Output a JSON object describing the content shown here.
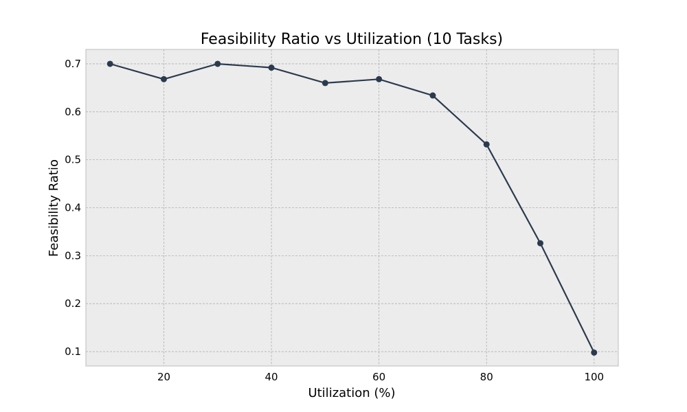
{
  "chart_data": {
    "type": "line",
    "title": "Feasibility Ratio vs Utilization (10 Tasks)",
    "xlabel": "Utilization (%)",
    "ylabel": "Feasibility Ratio",
    "xlim": [
      5.5,
      104.5
    ],
    "ylim": [
      0.07,
      0.73
    ],
    "xticks": [
      20,
      40,
      60,
      80,
      100
    ],
    "yticks": [
      0.1,
      0.2,
      0.3,
      0.4,
      0.5,
      0.6,
      0.7
    ],
    "grid": true,
    "x": [
      10,
      20,
      30,
      40,
      50,
      60,
      70,
      80,
      90,
      100
    ],
    "series": [
      {
        "values": [
          0.7,
          0.668,
          0.7,
          0.692,
          0.66,
          0.668,
          0.634,
          0.532,
          0.326,
          0.098
        ]
      }
    ]
  },
  "colors": {
    "line": "#2b3a4e",
    "plot_background": "#ececec",
    "grid": "#b0b0b0",
    "frame": "#bcbcbc"
  }
}
